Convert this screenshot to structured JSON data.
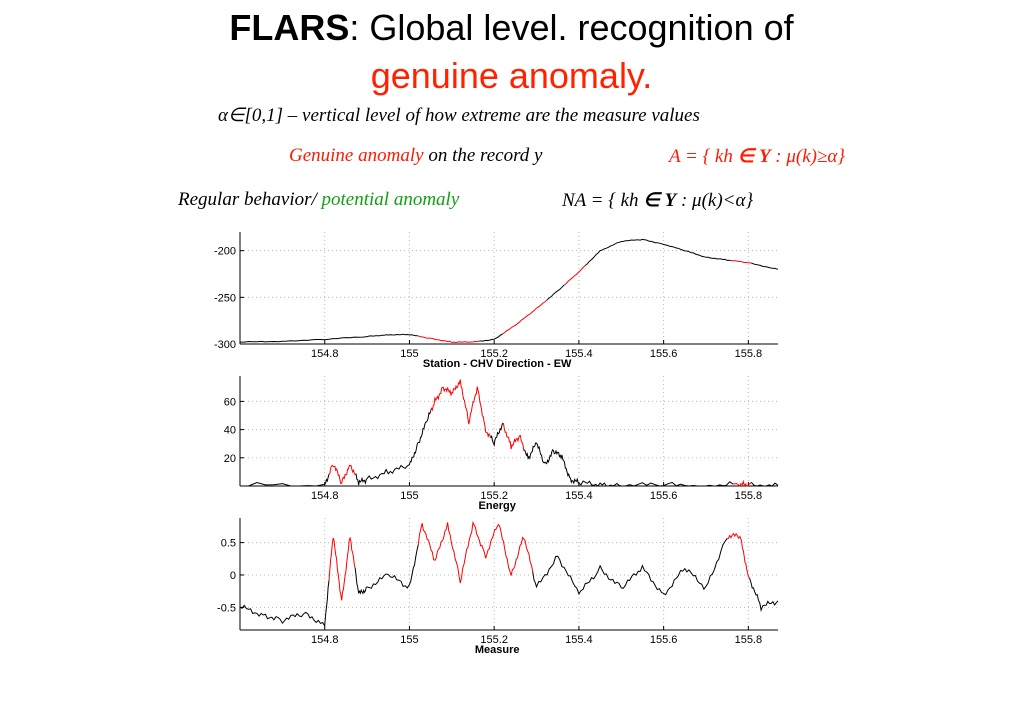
{
  "title": {
    "bold": "FLARS",
    "rest": ": Global level. recognition of",
    "line2": "genuine anomaly."
  },
  "text": {
    "alpha_def": "α∈[0,1] – vertical level of how extreme are the measure values",
    "genuine_label": "Genuine anomaly",
    "genuine_mid": "on the record y",
    "genuine_formula_a": "A = { kh",
    "genuine_formula_in": "∈",
    "genuine_formula_y": "Y",
    "genuine_formula_b": ": μ(k)≥α}",
    "regular_label": "Regular behavior/",
    "potential_label": "potential anomaly",
    "na_formula_a": "NA = { kh",
    "na_formula_in": "∈",
    "na_formula_y": "Y",
    "na_formula_b": ": μ(k)<α}"
  },
  "colors": {
    "normal": "#000000",
    "anomaly": "#ff0000",
    "minor": "#3344cc",
    "grid": "#b8b8b8"
  },
  "chart_data": [
    {
      "type": "line",
      "xlabel": "Station - CHV        Direction - EW",
      "ylabel": "",
      "xlim": [
        154.6,
        155.87
      ],
      "ylim": [
        -300,
        -180
      ],
      "xticks": [
        154.8,
        155,
        155.2,
        155.4,
        155.6,
        155.8
      ],
      "yticks": [
        -300,
        -250,
        -200
      ],
      "grid": true,
      "series": [
        {
          "x": [
            154.6,
            154.7,
            154.8,
            154.9,
            154.95,
            155.0,
            155.05,
            155.1,
            155.15,
            155.2,
            155.25,
            155.3,
            155.35,
            155.4,
            155.45,
            155.5,
            155.55,
            155.6,
            155.65,
            155.7,
            155.75,
            155.8,
            155.87
          ],
          "values": [
            -298,
            -297,
            -295,
            -292,
            -290,
            -290,
            -294,
            -298,
            -298,
            -295,
            -280,
            -262,
            -243,
            -223,
            -200,
            -190,
            -188,
            -193,
            -200,
            -207,
            -210,
            -213,
            -220
          ],
          "anomaly_ranges": [
            [
              155.02,
              155.16
            ],
            [
              155.22,
              155.32
            ],
            [
              155.36,
              155.41
            ],
            [
              155.76,
              155.8
            ]
          ]
        }
      ]
    },
    {
      "type": "line",
      "xlabel": "Energy",
      "ylabel": "",
      "xlim": [
        154.6,
        155.87
      ],
      "ylim": [
        0,
        78
      ],
      "xticks": [
        154.8,
        155,
        155.2,
        155.4,
        155.6,
        155.8
      ],
      "yticks": [
        20,
        40,
        60
      ],
      "grid": true,
      "series": [
        {
          "x": [
            154.6,
            154.8,
            154.82,
            154.84,
            154.86,
            154.88,
            154.9,
            154.95,
            155.0,
            155.02,
            155.04,
            155.06,
            155.08,
            155.1,
            155.12,
            155.14,
            155.16,
            155.18,
            155.2,
            155.22,
            155.24,
            155.26,
            155.28,
            155.3,
            155.32,
            155.34,
            155.36,
            155.38,
            155.4,
            155.45,
            155.5,
            155.6,
            155.7,
            155.78,
            155.8,
            155.87
          ],
          "values": [
            0,
            1,
            16,
            2,
            16,
            2,
            5,
            10,
            14,
            30,
            45,
            60,
            70,
            65,
            75,
            45,
            70,
            40,
            30,
            45,
            28,
            35,
            20,
            30,
            15,
            25,
            20,
            5,
            2,
            1,
            0.5,
            0.5,
            0.5,
            1,
            0.5,
            0.5
          ],
          "anomaly_ranges": [
            [
              154.81,
              154.87
            ],
            [
              155.05,
              155.19
            ],
            [
              155.22,
              155.27
            ],
            [
              155.76,
              155.8
            ]
          ]
        }
      ]
    },
    {
      "type": "line",
      "xlabel": "Measure",
      "ylabel": "",
      "xlim": [
        154.6,
        155.87
      ],
      "ylim": [
        -0.85,
        0.88
      ],
      "xticks": [
        154.8,
        155,
        155.2,
        155.4,
        155.6,
        155.8
      ],
      "yticks": [
        -0.5,
        0,
        0.5
      ],
      "grid": true,
      "series": [
        {
          "x": [
            154.6,
            154.65,
            154.7,
            154.75,
            154.8,
            154.82,
            154.84,
            154.86,
            154.88,
            154.9,
            154.95,
            155.0,
            155.03,
            155.06,
            155.09,
            155.12,
            155.15,
            155.18,
            155.21,
            155.24,
            155.27,
            155.3,
            155.35,
            155.4,
            155.45,
            155.5,
            155.55,
            155.6,
            155.65,
            155.7,
            155.75,
            155.78,
            155.8,
            155.83,
            155.87
          ],
          "values": [
            -0.5,
            -0.6,
            -0.7,
            -0.6,
            -0.75,
            0.6,
            -0.4,
            0.6,
            -0.3,
            -0.2,
            0.0,
            -0.2,
            0.8,
            0.2,
            0.8,
            -0.1,
            0.8,
            0.3,
            0.8,
            0.0,
            0.6,
            -0.2,
            0.3,
            -0.3,
            0.1,
            -0.2,
            0.1,
            -0.3,
            0.1,
            -0.2,
            0.6,
            0.6,
            0.0,
            -0.5,
            -0.4
          ],
          "anomaly_ranges": [
            [
              154.81,
              154.87
            ],
            [
              155.02,
              155.29
            ],
            [
              155.75,
              155.8
            ]
          ]
        }
      ]
    }
  ]
}
